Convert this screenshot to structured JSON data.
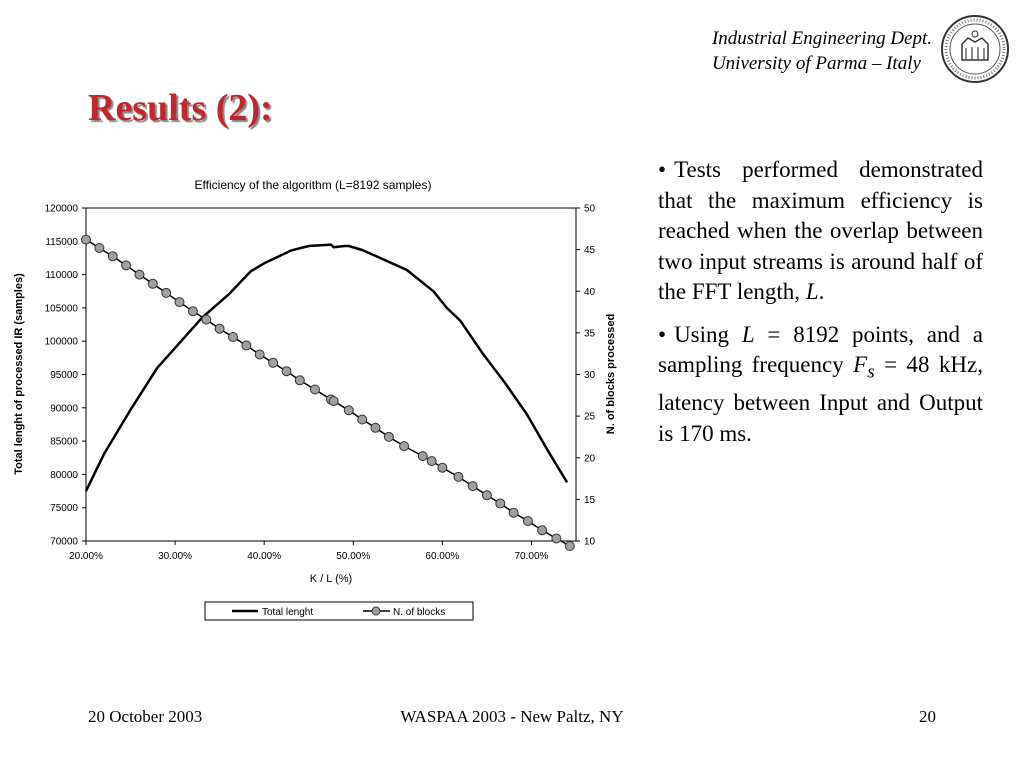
{
  "header": {
    "dept": "Industrial Engineering Dept.",
    "university": "University of Parma – Italy",
    "seal": "university-seal"
  },
  "slide_title": "Results (2):",
  "bullets": [
    {
      "marker": "•",
      "text": "Tests performed demonstrated that the maximum efficiency is reached when the overlap between two input streams is around half of the FFT length, ",
      "em": "L",
      "tail": "."
    },
    {
      "marker": "•",
      "p1": "Using ",
      "L": "L",
      "p2": " = 8192 points, and a sampling frequency ",
      "F": "F",
      "sub": "s",
      "p3": " = 48 kHz, latency between Input and Output is 170 ms."
    }
  ],
  "footer": {
    "date": "20 October 2003",
    "venue": "WASPAA 2003 - New Paltz, NY",
    "page": "20"
  },
  "chart_data": {
    "type": "line",
    "title": "Efficiency of the algorithm (L=8192 samples)",
    "xlabel": "K / L (%)",
    "ylabel": "Total lenght of processed IR (samples)",
    "y2label": "N. of blocks processed",
    "xlim": [
      0.2,
      0.75
    ],
    "ylim": [
      70000,
      120000
    ],
    "y2lim": [
      10,
      50
    ],
    "x_ticks": [
      0.2,
      0.3,
      0.4,
      0.5,
      0.6,
      0.7
    ],
    "x_tick_labels": [
      "20.00%",
      "30.00%",
      "40.00%",
      "50.00%",
      "60.00%",
      "70.00%"
    ],
    "y_ticks": [
      70000,
      75000,
      80000,
      85000,
      90000,
      95000,
      100000,
      105000,
      110000,
      115000,
      120000
    ],
    "y2_ticks": [
      10,
      15,
      20,
      25,
      30,
      35,
      40,
      45,
      50
    ],
    "legend_position": "bottom",
    "grid": false,
    "series": [
      {
        "name": "Total lenght",
        "axis": "left",
        "color": "#000000",
        "x": [
          0.2,
          0.22,
          0.25,
          0.28,
          0.3,
          0.33,
          0.36,
          0.385,
          0.4,
          0.43,
          0.45,
          0.475,
          0.478,
          0.49,
          0.495,
          0.51,
          0.53,
          0.56,
          0.59,
          0.605,
          0.62,
          0.645,
          0.67,
          0.695,
          0.72,
          0.74
        ],
        "values": [
          77500,
          83000,
          89700,
          96000,
          99000,
          103500,
          107000,
          110500,
          111700,
          113600,
          114300,
          114500,
          114100,
          114300,
          114300,
          113700,
          112500,
          110700,
          107500,
          105000,
          103100,
          98200,
          93800,
          89000,
          83200,
          78800
        ]
      },
      {
        "name": "N. of blocks",
        "axis": "right",
        "color": "#a0a0a0",
        "marker": "circle",
        "x": [
          0.2,
          0.215,
          0.23,
          0.245,
          0.26,
          0.275,
          0.29,
          0.305,
          0.32,
          0.335,
          0.35,
          0.365,
          0.38,
          0.395,
          0.41,
          0.425,
          0.44,
          0.457,
          0.475,
          0.478,
          0.495,
          0.51,
          0.525,
          0.54,
          0.557,
          0.578,
          0.588,
          0.6,
          0.618,
          0.634,
          0.65,
          0.665,
          0.68,
          0.696,
          0.712,
          0.728,
          0.743
        ],
        "values": [
          46.2,
          45.2,
          44.2,
          43.1,
          42.0,
          40.9,
          39.8,
          38.7,
          37.6,
          36.6,
          35.5,
          34.5,
          33.5,
          32.4,
          31.4,
          30.4,
          29.3,
          28.2,
          27.0,
          26.8,
          25.7,
          24.6,
          23.6,
          22.5,
          21.4,
          20.2,
          19.6,
          18.8,
          17.7,
          16.6,
          15.5,
          14.5,
          13.4,
          12.4,
          11.3,
          10.3,
          9.4
        ]
      }
    ]
  }
}
